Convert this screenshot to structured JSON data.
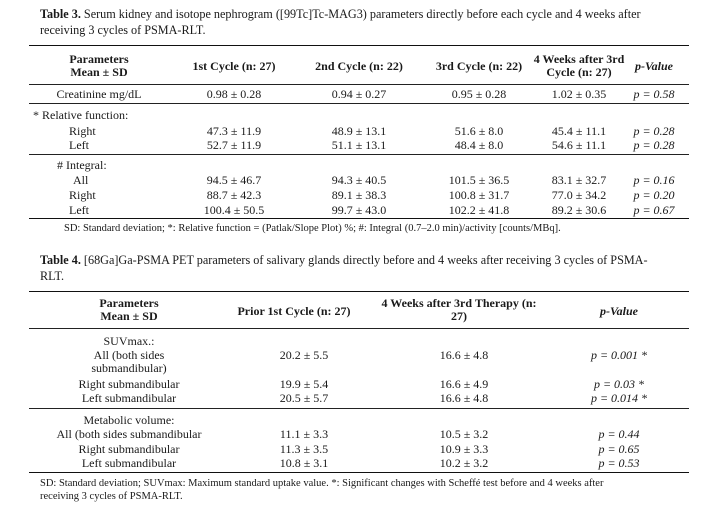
{
  "table3": {
    "caption_label": "Table 3.",
    "caption_line1": "Serum kidney and isotope nephrogram ([99Tc]Tc-MAG3) parameters directly before each cycle and 4 weeks after",
    "caption_line2": "receiving 3 cycles of PSMA-RLT.",
    "header": {
      "param_line1": "Parameters",
      "param_line2": "Mean ± SD",
      "c1": "1st Cycle (n: 27)",
      "c2": "2nd Cycle (n: 22)",
      "c3": "3rd Cycle (n: 22)",
      "c4_line1": "4 Weeks after 3rd",
      "c4_line2": "Cycle (n: 27)",
      "pvalue": "p-Value"
    },
    "rows": [
      {
        "label": "Creatinine mg/dL",
        "v1": "0.98 ± 0.28",
        "v2": "0.94 ± 0.27",
        "v3": "0.95 ± 0.28",
        "v4": "1.02 ± 0.35",
        "p": "p = 0.58"
      },
      {
        "label": "* Relative function:",
        "v1": "",
        "v2": "",
        "v3": "",
        "v4": "",
        "p": ""
      },
      {
        "label": "Right",
        "v1": "47.3 ± 11.9",
        "v2": "48.9 ± 13.1",
        "v3": "51.6 ± 8.0",
        "v4": "45.4 ± 11.1",
        "p": "p = 0.28"
      },
      {
        "label": "Left",
        "v1": "52.7 ± 11.9",
        "v2": "51.1 ± 13.1",
        "v3": "48.4 ± 8.0",
        "v4": "54.6 ± 11.1",
        "p": "p = 0.28"
      },
      {
        "label": "# Integral:",
        "v1": "",
        "v2": "",
        "v3": "",
        "v4": "",
        "p": ""
      },
      {
        "label": "All",
        "v1": "94.5 ± 46.7",
        "v2": "94.3 ± 40.5",
        "v3": "101.5 ± 36.5",
        "v4": "83.1 ± 32.7",
        "p": "p = 0.16"
      },
      {
        "label": "Right",
        "v1": "88.7 ± 42.3",
        "v2": "89.1 ± 38.3",
        "v3": "100.8 ± 31.7",
        "v4": "77.0 ± 34.2",
        "p": "p = 0.20"
      },
      {
        "label": "Left",
        "v1": "100.4 ± 50.5",
        "v2": "99.7 ± 43.0",
        "v3": "102.2 ± 41.8",
        "v4": "89.2 ± 30.6",
        "p": "p = 0.67"
      }
    ],
    "footnote": "SD: Standard deviation; *: Relative function = (Patlak/Slope Plot) %; #: Integral (0.7–2.0 min)/activity [counts/MBq]."
  },
  "table4": {
    "caption_label": "Table 4.",
    "caption_line1": "[68Ga]Ga-PSMA PET parameters of salivary glands directly before and 4 weeks after receiving 3 cycles of PSMA-",
    "caption_line2": "RLT.",
    "header": {
      "param_line1": "Parameters",
      "param_line2": "Mean ± SD",
      "c1": "Prior 1st Cycle (n: 27)",
      "c2_line1": "4 Weeks after 3rd Therapy (n:",
      "c2_line2": "27)",
      "pvalue": "p-Value"
    },
    "rows": [
      {
        "label": "SUVmax.:",
        "v1": "",
        "v2": "",
        "p": ""
      },
      {
        "label": "All (both sides",
        "v1": "20.2 ± 5.5",
        "v2": "16.6 ± 4.8",
        "p": "p = 0.001 *"
      },
      {
        "label": "submandibular)",
        "v1": "",
        "v2": "",
        "p": ""
      },
      {
        "label": "Right submandibular",
        "v1": "19.9 ± 5.4",
        "v2": "16.6 ± 4.9",
        "p": "p = 0.03 *"
      },
      {
        "label": "Left submandibular",
        "v1": "20.5 ± 5.7",
        "v2": "16.6 ± 4.8",
        "p": "p = 0.014 *"
      },
      {
        "label": "Metabolic volume:",
        "v1": "",
        "v2": "",
        "p": ""
      },
      {
        "label": "All (both sides submandibular",
        "v1": "11.1 ± 3.3",
        "v2": "10.5 ± 3.2",
        "p": "p = 0.44"
      },
      {
        "label": "Right submandibular",
        "v1": "11.3 ± 3.5",
        "v2": "10.9 ± 3.3",
        "p": "p = 0.65"
      },
      {
        "label": "Left submandibular",
        "v1": "10.8 ± 3.1",
        "v2": "10.2 ± 3.2",
        "p": "p = 0.53"
      }
    ],
    "footnote_line1": "SD: Standard deviation; SUVmax: Maximum standard uptake value. *: Significant changes with Scheffé test before and 4 weeks after",
    "footnote_line2": "receiving 3 cycles of PSMA-RLT."
  }
}
